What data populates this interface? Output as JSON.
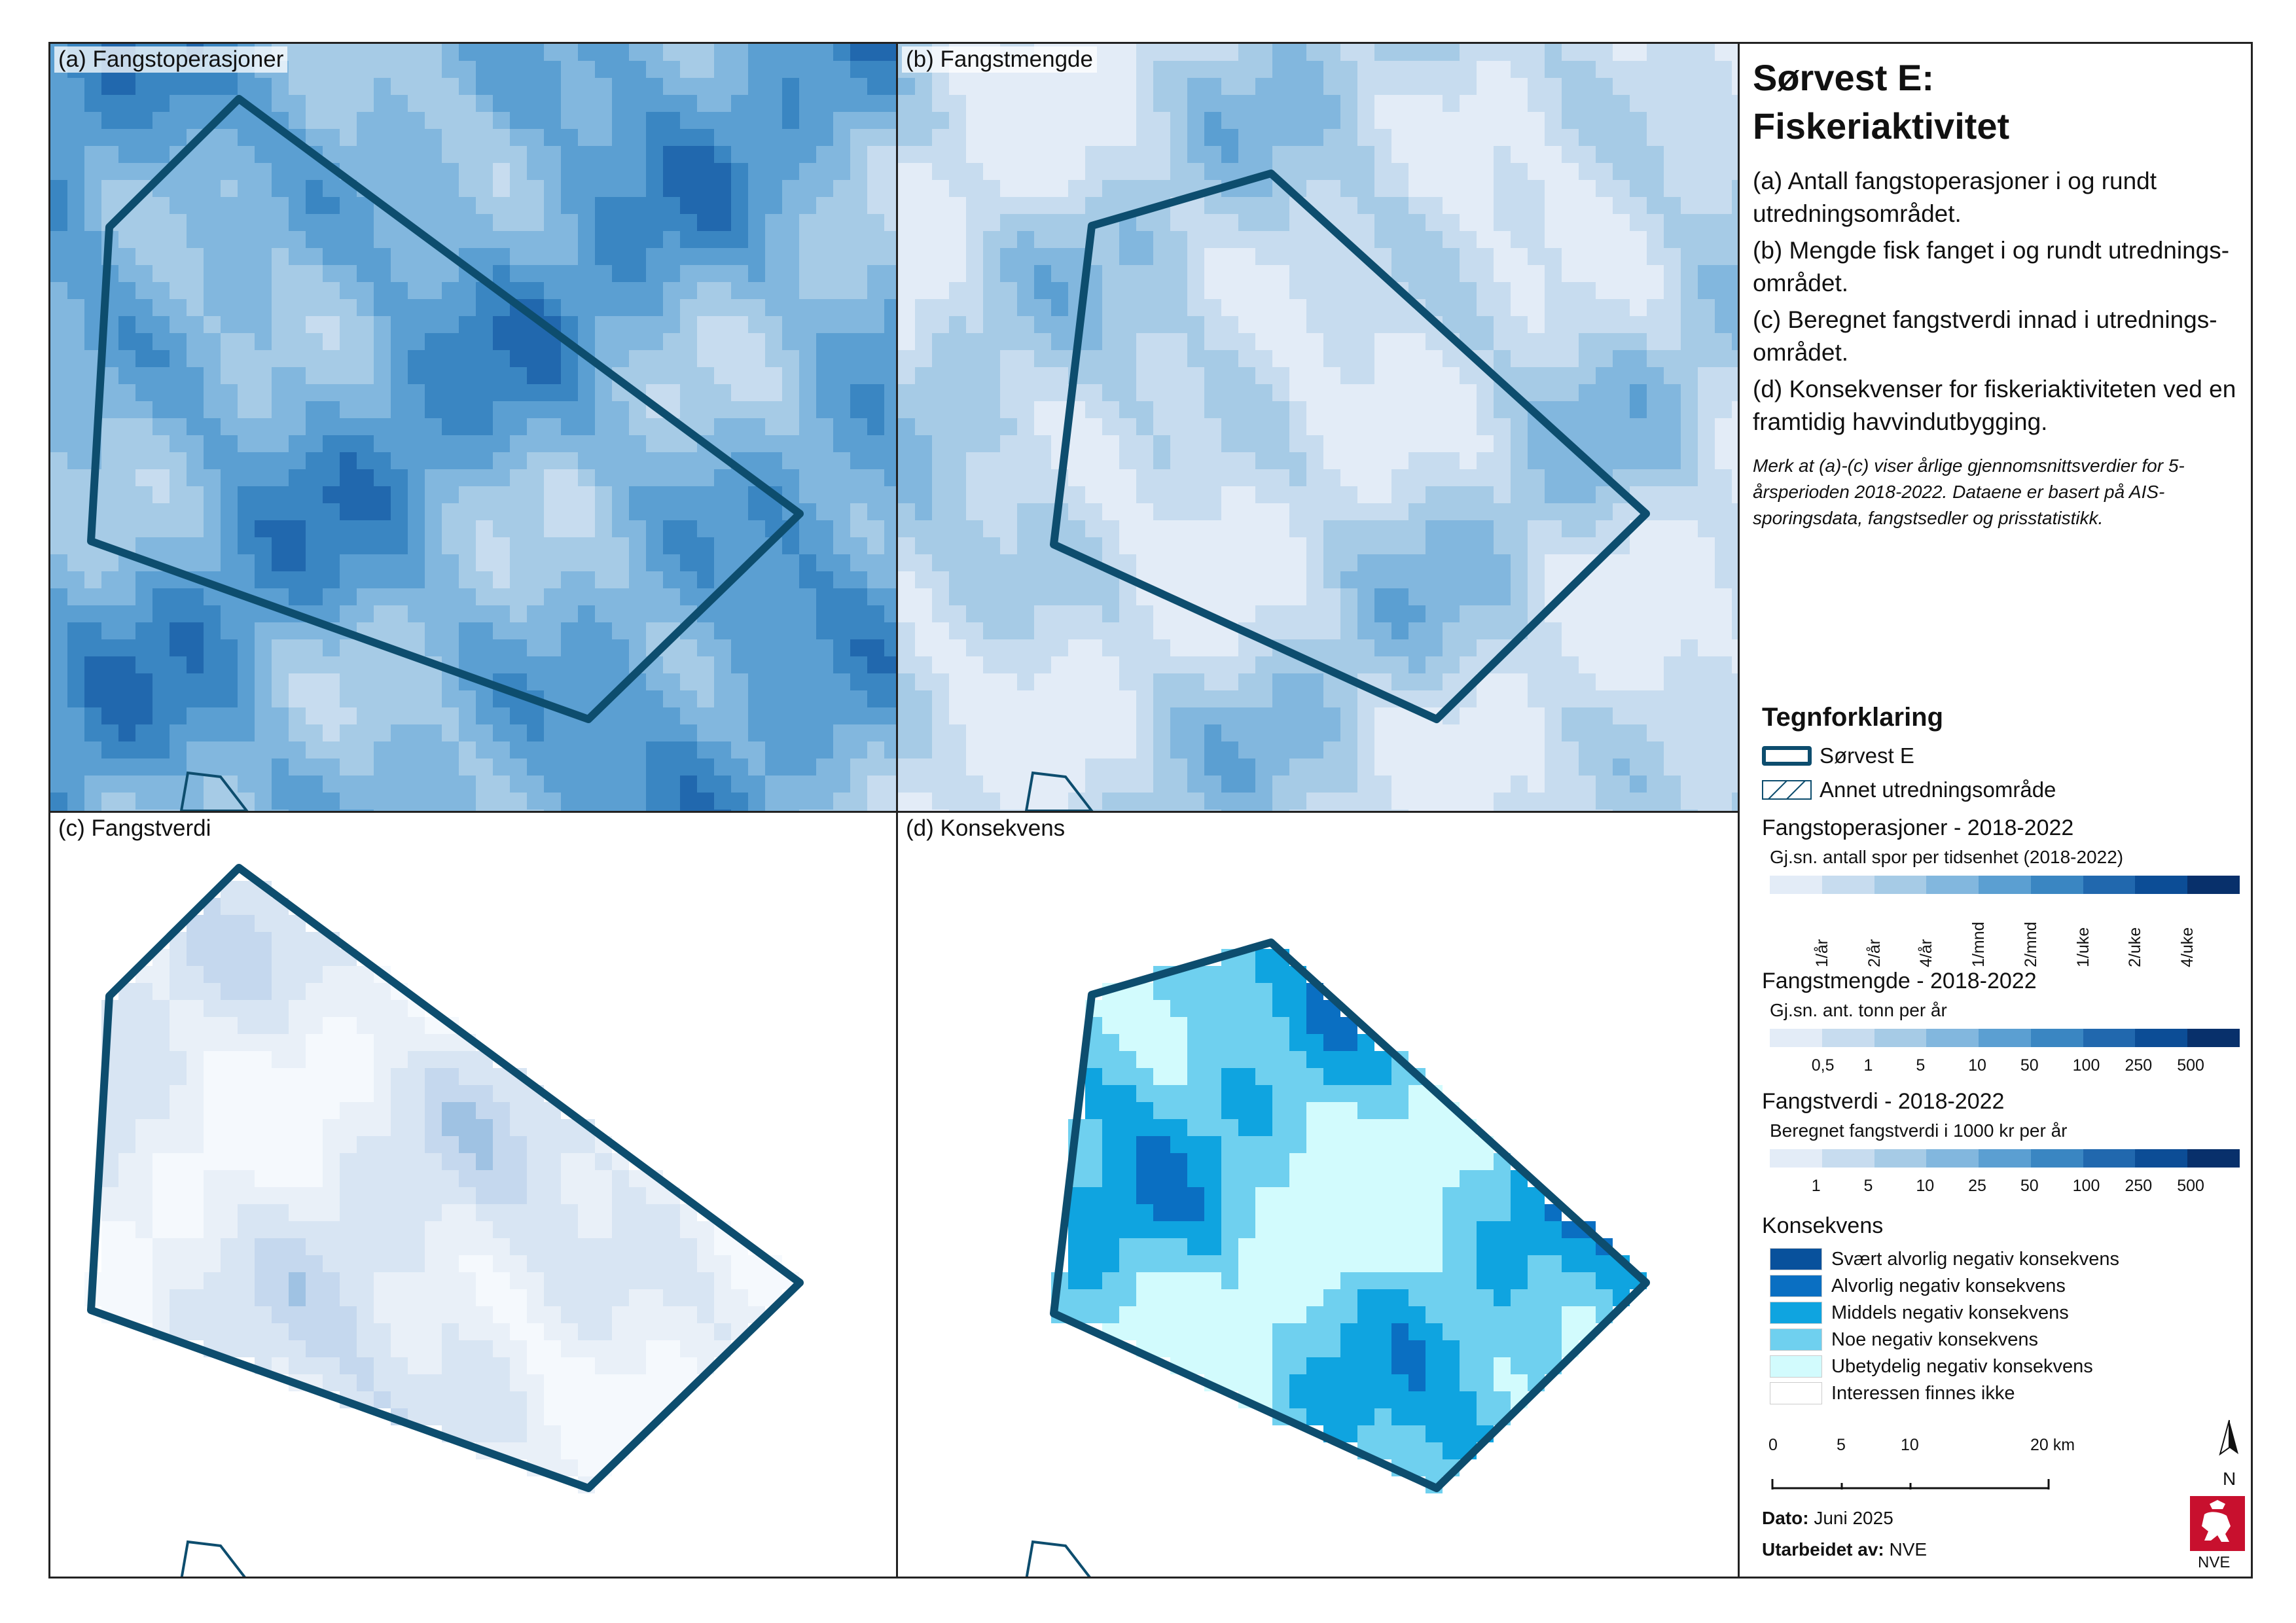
{
  "panels": [
    {
      "title": "(a) Fangstoperasjoner",
      "scheme": "blue",
      "base": 4
    },
    {
      "title": "(b) Fangstmengde",
      "scheme": "blue",
      "base": 1
    },
    {
      "title": "(c) Fangstverdi",
      "scheme": "pale",
      "base": 0
    },
    {
      "title": "(d) Konsekvens",
      "scheme": "cyan",
      "base": 2
    }
  ],
  "legend": {
    "title_line1": "Sørvest E:",
    "title_line2": "Fiskeriaktivitet",
    "desc": [
      "(a) Antall fangstoperasjoner i og rundt utredningsområdet.",
      "(b) Mengde fisk fanget i og rundt utrednings-området.",
      "(c) Beregnet fangstverdi innad i utrednings-området.",
      "(d) Konsekvenser for fiskeriaktiviteten ved en framtidig havvindutbygging."
    ],
    "note": "Merk at (a)-(c) viser årlige gjennomsnittsverdier for 5-årsperioden 2018-2022. Dataene er basert på AIS-sporingsdata, fangstsedler og prisstatistikk.",
    "heading": "Tegnforklaring",
    "sorvest_label": "Sørvest E",
    "annet_label": "Annet utredningsområde",
    "fangstop_title": "Fangstoperasjoner - 2018-2022",
    "fangstop_sub": "Gj.sn. antall spor per tidsenhet (2018-2022)",
    "fangstop_ticks": [
      "1/år",
      "2/år",
      "4/år",
      "1/mnd",
      "2/mnd",
      "1/uke",
      "2/uke",
      "4/uke"
    ],
    "fangstm_title": "Fangstmengde - 2018-2022",
    "fangstm_sub": "Gj.sn. ant. tonn per år",
    "fangstm_ticks": [
      "0,5",
      "1",
      "5",
      "10",
      "50",
      "100",
      "250",
      "500"
    ],
    "fangstv_title": "Fangstverdi - 2018-2022",
    "fangstv_sub": "Beregnet fangstverdi i 1000 kr per år",
    "fangstv_ticks": [
      "1",
      "5",
      "10",
      "25",
      "50",
      "100",
      "250",
      "500"
    ],
    "kons_title": "Konsekvens",
    "kons_items": [
      {
        "label": "Svært alvorlig negativ konsekvens",
        "color": "#08519c"
      },
      {
        "label": "Alvorlig negativ konsekvens",
        "color": "#0a6fc2"
      },
      {
        "label": "Middels negativ konsekvens",
        "color": "#0fa4e0"
      },
      {
        "label": "Noe negativ konsekvens",
        "color": "#6fd0ef"
      },
      {
        "label": "Ubetydelig negativ konsekvens",
        "color": "#d2fbfd"
      },
      {
        "label": "Interessen finnes ikke",
        "color": "#ffffff"
      }
    ],
    "scale_labels": [
      "0",
      "5",
      "10",
      "20 km"
    ],
    "north": "N",
    "date_label": "Dato:",
    "date_value": "Juni 2025",
    "by_label": "Utarbeidet av:",
    "by_value": "NVE",
    "logo_text": "NVE"
  },
  "colors": {
    "outline": "#0d4d6e",
    "blue_ramp": [
      "#e3ecf7",
      "#c7dcef",
      "#a6cbe6",
      "#82b7de",
      "#5b9fd2",
      "#3a86c2",
      "#2168ae",
      "#0c4d96",
      "#08306b"
    ],
    "logo_red": "#c8102e"
  }
}
